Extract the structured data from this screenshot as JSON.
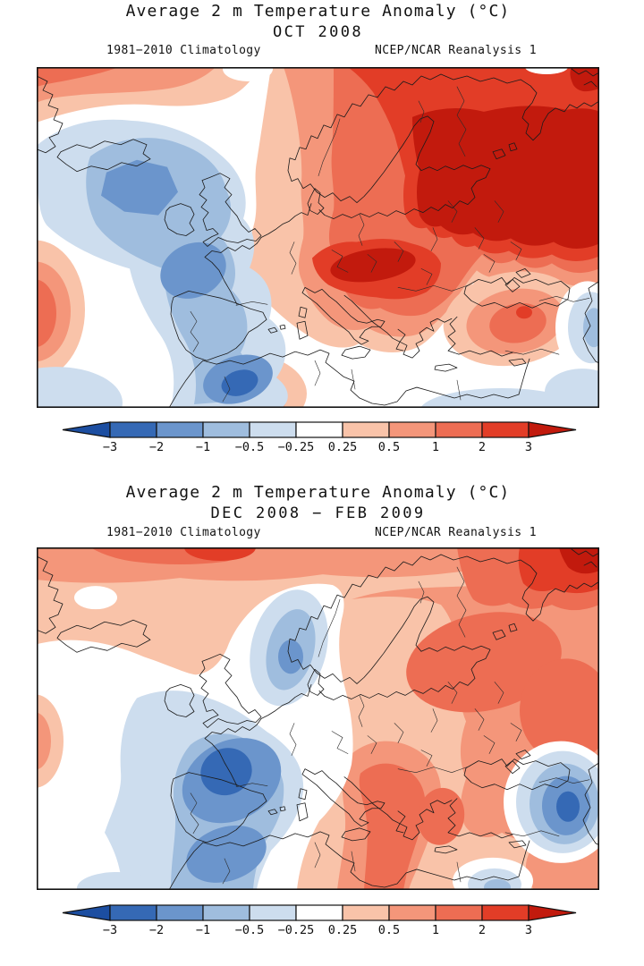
{
  "panels": [
    {
      "title": "Average 2 m Temperature Anomaly (°C)",
      "period": "OCT 2008",
      "climatology": "1981−2010 Climatology",
      "source": "NCEP/NCAR Reanalysis 1"
    },
    {
      "title": "Average 2 m Temperature Anomaly (°C)",
      "period": "DEC 2008 − FEB 2009",
      "climatology": "1981−2010 Climatology",
      "source": "NCEP/NCAR Reanalysis 1"
    }
  ],
  "colorbar": {
    "unit": "°C",
    "levels": [
      "−3",
      "−2",
      "−1",
      "−0.5",
      "−0.25",
      "0.25",
      "0.5",
      "1",
      "2",
      "3"
    ],
    "colors": [
      "#1c4ea1",
      "#3569b5",
      "#6b95cc",
      "#9fbdde",
      "#cdddee",
      "#ffffff",
      "#f9c3a9",
      "#f4967a",
      "#ed6d53",
      "#e23d27",
      "#c21a0d"
    ]
  },
  "chart_data": [
    {
      "type": "heatmap",
      "title": "Average 2 m Temperature Anomaly (°C)",
      "period": "OCT 2008",
      "climatology": "1981−2010 Climatology",
      "source": "NCEP/NCAR Reanalysis 1",
      "region": "Europe / North Atlantic",
      "units": "°C",
      "contour_levels": [
        -3,
        -2,
        -1,
        -0.5,
        -0.25,
        0.25,
        0.5,
        1,
        2,
        3
      ],
      "palette": [
        "#1c4ea1",
        "#3569b5",
        "#6b95cc",
        "#9fbdde",
        "#cdddee",
        "#ffffff",
        "#f9c3a9",
        "#f4967a",
        "#ed6d53",
        "#e23d27",
        "#c21a0d"
      ],
      "features": [
        {
          "region": "NW Russia / Barents region",
          "anomaly_c": "+2 to >+3"
        },
        {
          "region": "Arctic rim and Greenland Sea (top of map)",
          "anomaly_c": "+0.5 to +2"
        },
        {
          "region": "Ukraine / Belarus / Balkans tongue",
          "anomaly_c": "+1 to >+3"
        },
        {
          "region": "Iceland / Norwegian Sea blob",
          "anomaly_c": "-0.5 to -2"
        },
        {
          "region": "British Isles, France, Iberia swath",
          "anomaly_c": "-0.5 to -2"
        },
        {
          "region": "Southern Spain core",
          "anomaly_c": "-2 to -3"
        },
        {
          "region": "Mid-Atlantic at west edge",
          "anomaly_c": "+0.5 to +2"
        },
        {
          "region": "Tunisia / Algeria coast",
          "anomaly_c": "+0.5 to +2"
        },
        {
          "region": "Turkey / Caucasus",
          "anomaly_c": "+0.5 to +2"
        },
        {
          "region": "Mediterranean / SE corner",
          "anomaly_c": "-0.25 to +0.25 (near normal)"
        }
      ]
    },
    {
      "type": "heatmap",
      "title": "Average 2 m Temperature Anomaly (°C)",
      "period": "DEC 2008 − FEB 2009",
      "climatology": "1981−2010 Climatology",
      "source": "NCEP/NCAR Reanalysis 1",
      "region": "Europe / North Atlantic",
      "units": "°C",
      "contour_levels": [
        -3,
        -2,
        -1,
        -0.5,
        -0.25,
        0.25,
        0.5,
        1,
        2,
        3
      ],
      "palette": [
        "#1c4ea1",
        "#3569b5",
        "#6b95cc",
        "#9fbdde",
        "#cdddee",
        "#ffffff",
        "#f9c3a9",
        "#f4967a",
        "#ed6d53",
        "#e23d27",
        "#c21a0d"
      ],
      "features": [
        {
          "region": "Arctic / Barents, NE corner of map",
          "anomaly_c": "+2 to >+3"
        },
        {
          "region": "Finland / NW Russia",
          "anomaly_c": "+1 to +2"
        },
        {
          "region": "Balkans / Greece / Turkey / Black Sea band",
          "anomaly_c": "+0.5 to +2"
        },
        {
          "region": "France / Germany / Low Countries core",
          "anomaly_c": "-1 to -2"
        },
        {
          "region": "Iberia",
          "anomaly_c": "-0.5 to -1"
        },
        {
          "region": "Southern Scandinavia strip",
          "anomaly_c": "-0.25 to -1"
        },
        {
          "region": "Caspian region at east edge",
          "anomaly_c": "-1 to -2"
        },
        {
          "region": "North Atlantic / Iceland",
          "anomaly_c": "+0.25 to +1"
        }
      ]
    }
  ]
}
